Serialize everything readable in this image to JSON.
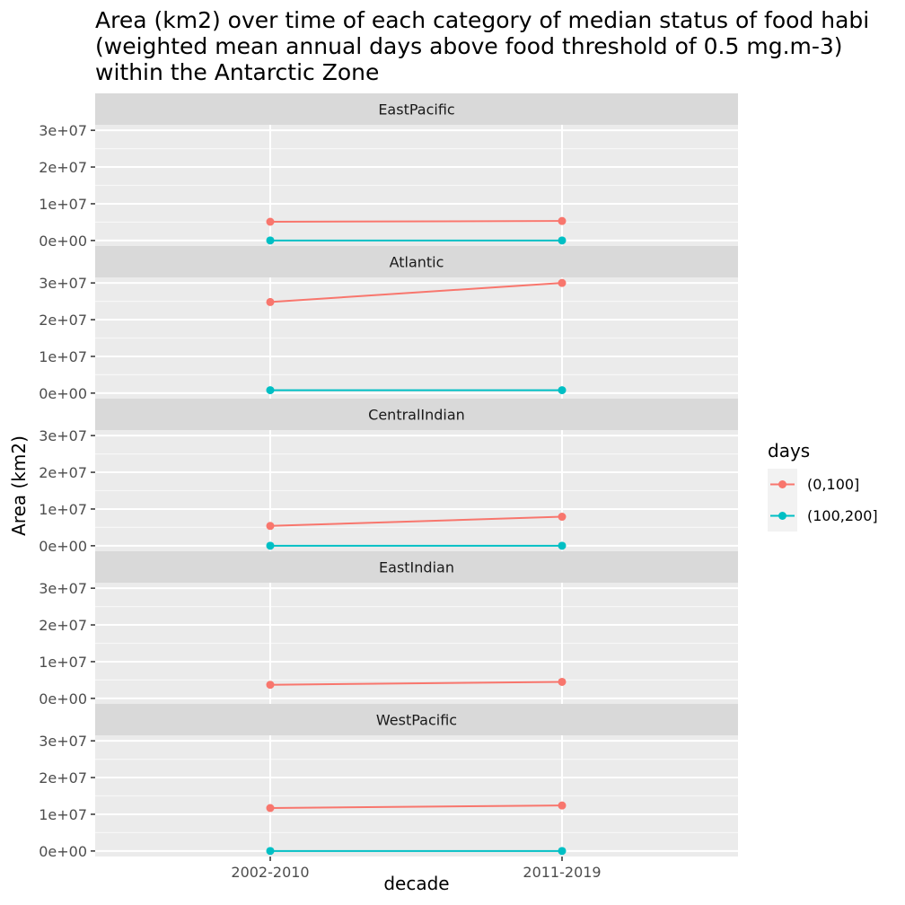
{
  "chart_data": {
    "type": "line",
    "title_lines": [
      "Area (km2) over time of each category of median status of food habi",
      "(weighted mean annual days above food threshold of 0.5 mg.m-3)",
      "within the Antarctic Zone"
    ],
    "xlabel": "decade",
    "ylabel": "Area (km2)",
    "categories": [
      "2002-2010",
      "2011-2019"
    ],
    "ylim": [
      -1500000,
      31500000
    ],
    "yticks": [
      0,
      10000000,
      20000000,
      30000000
    ],
    "ytick_labels": [
      "0e+00",
      "1e+07",
      "2e+07",
      "3e+07"
    ],
    "grid": true,
    "legend": {
      "title": "days",
      "position": "right",
      "entries": [
        {
          "label": "(0,100]",
          "color": "#F8766D"
        },
        {
          "label": "(100,200]",
          "color": "#00BFC4"
        }
      ]
    },
    "panels": [
      {
        "facet": "EastPacific",
        "series": [
          {
            "name": "(0,100]",
            "color": "#F8766D",
            "values": [
              5100000,
              5300000
            ]
          },
          {
            "name": "(100,200]",
            "color": "#00BFC4",
            "values": [
              0,
              0
            ]
          }
        ]
      },
      {
        "facet": "Atlantic",
        "series": [
          {
            "name": "(0,100]",
            "color": "#F8766D",
            "values": [
              24800000,
              30000000
            ]
          },
          {
            "name": "(100,200]",
            "color": "#00BFC4",
            "values": [
              800000,
              800000
            ]
          }
        ]
      },
      {
        "facet": "CentralIndian",
        "series": [
          {
            "name": "(0,100]",
            "color": "#F8766D",
            "values": [
              5400000,
              7900000
            ]
          },
          {
            "name": "(100,200]",
            "color": "#00BFC4",
            "values": [
              0,
              0
            ]
          }
        ]
      },
      {
        "facet": "EastIndian",
        "series": [
          {
            "name": "(0,100]",
            "color": "#F8766D",
            "values": [
              3700000,
              4500000
            ]
          }
        ]
      },
      {
        "facet": "WestPacific",
        "series": [
          {
            "name": "(0,100]",
            "color": "#F8766D",
            "values": [
              11700000,
              12400000
            ]
          },
          {
            "name": "(100,200]",
            "color": "#00BFC4",
            "values": [
              0,
              0
            ]
          }
        ]
      }
    ]
  }
}
